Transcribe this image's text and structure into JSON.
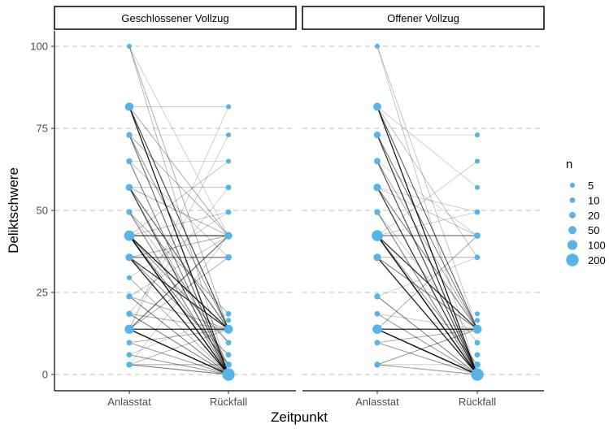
{
  "chart_data": {
    "type": "scatter",
    "subtype": "slopegraph-faceted",
    "ylabel": "Deliktschwere",
    "xlabel": "Zeitpunkt",
    "x_categories": [
      "Anlasstat",
      "Rückfall"
    ],
    "ylim": [
      0,
      100
    ],
    "yticks": [
      0,
      25,
      50,
      75,
      100
    ],
    "grid": "horizontal dashed",
    "legend": {
      "title": "n",
      "position": "right",
      "sizes": [
        5,
        10,
        20,
        50,
        100,
        200
      ],
      "labels": [
        "5",
        "10",
        "20",
        "50",
        "100",
        "200"
      ]
    },
    "colors": {
      "point": "#56B4E9",
      "line": "#000000",
      "strip_border": "#000000",
      "grid": "#cccccc"
    },
    "facets": [
      {
        "title": "Geschlossener Vollzug",
        "points_anlasstat": [
          {
            "y": 100,
            "n": 5
          },
          {
            "y": 81.6,
            "n": 60
          },
          {
            "y": 73,
            "n": 15
          },
          {
            "y": 65,
            "n": 15
          },
          {
            "y": 57,
            "n": 30
          },
          {
            "y": 49.5,
            "n": 15
          },
          {
            "y": 42.3,
            "n": 120
          },
          {
            "y": 35.7,
            "n": 40
          },
          {
            "y": 29.5,
            "n": 5
          },
          {
            "y": 23.8,
            "n": 15
          },
          {
            "y": 18.5,
            "n": 15
          },
          {
            "y": 13.8,
            "n": 80
          },
          {
            "y": 9.7,
            "n": 10
          },
          {
            "y": 6,
            "n": 10
          },
          {
            "y": 3,
            "n": 15
          }
        ],
        "points_rueckfall": [
          {
            "y": 81.6,
            "n": 5
          },
          {
            "y": 73,
            "n": 5
          },
          {
            "y": 65,
            "n": 5
          },
          {
            "y": 57,
            "n": 10
          },
          {
            "y": 49.5,
            "n": 10
          },
          {
            "y": 42.3,
            "n": 40
          },
          {
            "y": 35.7,
            "n": 20
          },
          {
            "y": 18.5,
            "n": 10
          },
          {
            "y": 16.5,
            "n": 5
          },
          {
            "y": 13.8,
            "n": 70
          },
          {
            "y": 9.7,
            "n": 10
          },
          {
            "y": 6,
            "n": 10
          },
          {
            "y": 3,
            "n": 20
          },
          {
            "y": 0,
            "n": 200
          }
        ],
        "links": [
          {
            "from": 81.6,
            "to": 0,
            "w": 0.9
          },
          {
            "from": 81.6,
            "to": 13.8,
            "w": 0.7
          },
          {
            "from": 81.6,
            "to": 81.6,
            "w": 0.2
          },
          {
            "from": 100,
            "to": 13.8,
            "w": 0.3
          },
          {
            "from": 100,
            "to": 0,
            "w": 0.25
          },
          {
            "from": 73,
            "to": 0,
            "w": 0.6
          },
          {
            "from": 73,
            "to": 42.3,
            "w": 0.3
          },
          {
            "from": 73,
            "to": 13.8,
            "w": 0.4
          },
          {
            "from": 65,
            "to": 0,
            "w": 0.5
          },
          {
            "from": 65,
            "to": 35.7,
            "w": 0.2
          },
          {
            "from": 57,
            "to": 0,
            "w": 0.7
          },
          {
            "from": 57,
            "to": 13.8,
            "w": 0.6
          },
          {
            "from": 57,
            "to": 57,
            "w": 0.2
          },
          {
            "from": 57,
            "to": 42.3,
            "w": 0.3
          },
          {
            "from": 49.5,
            "to": 0,
            "w": 0.5
          },
          {
            "from": 49.5,
            "to": 18.5,
            "w": 0.3
          },
          {
            "from": 42.3,
            "to": 42.3,
            "w": 0.8
          },
          {
            "from": 42.3,
            "to": 0,
            "w": 1.0
          },
          {
            "from": 42.3,
            "to": 13.8,
            "w": 0.9
          },
          {
            "from": 42.3,
            "to": 3,
            "w": 0.5
          },
          {
            "from": 42.3,
            "to": 49.5,
            "w": 0.2
          },
          {
            "from": 42.3,
            "to": 65,
            "w": 0.2
          },
          {
            "from": 35.7,
            "to": 35.7,
            "w": 0.6
          },
          {
            "from": 35.7,
            "to": 0,
            "w": 0.9
          },
          {
            "from": 35.7,
            "to": 13.8,
            "w": 0.8
          },
          {
            "from": 35.7,
            "to": 6,
            "w": 0.4
          },
          {
            "from": 29.5,
            "to": 0,
            "w": 0.3
          },
          {
            "from": 23.8,
            "to": 0,
            "w": 0.5
          },
          {
            "from": 23.8,
            "to": 42.3,
            "w": 0.2
          },
          {
            "from": 18.5,
            "to": 0,
            "w": 0.5
          },
          {
            "from": 18.5,
            "to": 13.8,
            "w": 0.3
          },
          {
            "from": 13.8,
            "to": 13.8,
            "w": 0.9
          },
          {
            "from": 13.8,
            "to": 0,
            "w": 1.0
          },
          {
            "from": 13.8,
            "to": 42.3,
            "w": 0.6
          },
          {
            "from": 13.8,
            "to": 35.7,
            "w": 0.3
          },
          {
            "from": 13.8,
            "to": 73,
            "w": 0.15
          },
          {
            "from": 13.8,
            "to": 81.6,
            "w": 0.15
          },
          {
            "from": 9.7,
            "to": 0,
            "w": 0.4
          },
          {
            "from": 9.7,
            "to": 13.8,
            "w": 0.3
          },
          {
            "from": 6,
            "to": 0,
            "w": 0.4
          },
          {
            "from": 3,
            "to": 0,
            "w": 0.5
          },
          {
            "from": 3,
            "to": 3,
            "w": 0.3
          },
          {
            "from": 3,
            "to": 13.8,
            "w": 0.3
          },
          {
            "from": 3,
            "to": 42.3,
            "w": 0.15
          },
          {
            "from": 65,
            "to": 65,
            "w": 0.1
          },
          {
            "from": 73,
            "to": 73,
            "w": 0.1
          },
          {
            "from": 29.5,
            "to": 49.5,
            "w": 0.15
          },
          {
            "from": 18.5,
            "to": 57,
            "w": 0.15
          },
          {
            "from": 49.5,
            "to": 9.7,
            "w": 0.2
          },
          {
            "from": 57,
            "to": 3,
            "w": 0.3
          },
          {
            "from": 81.6,
            "to": 42.3,
            "w": 0.3
          },
          {
            "from": 23.8,
            "to": 13.8,
            "w": 0.3
          },
          {
            "from": 35.7,
            "to": 42.3,
            "w": 0.3
          },
          {
            "from": 6,
            "to": 18.5,
            "w": 0.15
          },
          {
            "from": 100,
            "to": 42.3,
            "w": 0.15
          },
          {
            "from": 42.3,
            "to": 9.7,
            "w": 0.4
          }
        ]
      },
      {
        "title": "Offener Vollzug",
        "points_anlasstat": [
          {
            "y": 100,
            "n": 5
          },
          {
            "y": 81.6,
            "n": 50
          },
          {
            "y": 73,
            "n": 25
          },
          {
            "y": 65,
            "n": 20
          },
          {
            "y": 57,
            "n": 40
          },
          {
            "y": 49.5,
            "n": 15
          },
          {
            "y": 42.3,
            "n": 140
          },
          {
            "y": 35.7,
            "n": 40
          },
          {
            "y": 23.8,
            "n": 15
          },
          {
            "y": 18.5,
            "n": 10
          },
          {
            "y": 13.8,
            "n": 90
          },
          {
            "y": 9.7,
            "n": 10
          },
          {
            "y": 3,
            "n": 15
          }
        ],
        "points_rueckfall": [
          {
            "y": 73,
            "n": 5
          },
          {
            "y": 65,
            "n": 5
          },
          {
            "y": 57,
            "n": 5
          },
          {
            "y": 49.5,
            "n": 10
          },
          {
            "y": 42.3,
            "n": 20
          },
          {
            "y": 35.7,
            "n": 10
          },
          {
            "y": 18.5,
            "n": 5
          },
          {
            "y": 16.5,
            "n": 5
          },
          {
            "y": 13.8,
            "n": 70
          },
          {
            "y": 9.7,
            "n": 10
          },
          {
            "y": 6,
            "n": 10
          },
          {
            "y": 3,
            "n": 20
          },
          {
            "y": 0,
            "n": 200
          }
        ],
        "links": [
          {
            "from": 81.6,
            "to": 0,
            "w": 0.9
          },
          {
            "from": 81.6,
            "to": 13.8,
            "w": 0.6
          },
          {
            "from": 100,
            "to": 13.8,
            "w": 0.2
          },
          {
            "from": 100,
            "to": 0,
            "w": 0.2
          },
          {
            "from": 73,
            "to": 0,
            "w": 0.8
          },
          {
            "from": 73,
            "to": 13.8,
            "w": 0.5
          },
          {
            "from": 65,
            "to": 0,
            "w": 0.7
          },
          {
            "from": 65,
            "to": 13.8,
            "w": 0.3
          },
          {
            "from": 57,
            "to": 0,
            "w": 0.8
          },
          {
            "from": 57,
            "to": 13.8,
            "w": 0.5
          },
          {
            "from": 57,
            "to": 42.3,
            "w": 0.2
          },
          {
            "from": 49.5,
            "to": 0,
            "w": 0.5
          },
          {
            "from": 42.3,
            "to": 42.3,
            "w": 0.6
          },
          {
            "from": 42.3,
            "to": 0,
            "w": 1.0
          },
          {
            "from": 42.3,
            "to": 13.8,
            "w": 0.8
          },
          {
            "from": 42.3,
            "to": 3,
            "w": 0.4
          },
          {
            "from": 35.7,
            "to": 0,
            "w": 0.9
          },
          {
            "from": 35.7,
            "to": 13.8,
            "w": 0.5
          },
          {
            "from": 35.7,
            "to": 35.7,
            "w": 0.3
          },
          {
            "from": 23.8,
            "to": 0,
            "w": 0.5
          },
          {
            "from": 18.5,
            "to": 0,
            "w": 0.4
          },
          {
            "from": 13.8,
            "to": 13.8,
            "w": 0.9
          },
          {
            "from": 13.8,
            "to": 0,
            "w": 1.0
          },
          {
            "from": 13.8,
            "to": 42.3,
            "w": 0.3
          },
          {
            "from": 9.7,
            "to": 0,
            "w": 0.4
          },
          {
            "from": 3,
            "to": 0,
            "w": 0.4
          },
          {
            "from": 3,
            "to": 13.8,
            "w": 0.4
          },
          {
            "from": 3,
            "to": 3,
            "w": 0.2
          },
          {
            "from": 81.6,
            "to": 57,
            "w": 0.15
          },
          {
            "from": 73,
            "to": 73,
            "w": 0.1
          },
          {
            "from": 42.3,
            "to": 49.5,
            "w": 0.15
          },
          {
            "from": 42.3,
            "to": 65,
            "w": 0.15
          },
          {
            "from": 57,
            "to": 49.5,
            "w": 0.15
          },
          {
            "from": 23.8,
            "to": 35.7,
            "w": 0.15
          },
          {
            "from": 9.7,
            "to": 13.8,
            "w": 0.3
          },
          {
            "from": 18.5,
            "to": 13.8,
            "w": 0.2
          },
          {
            "from": 49.5,
            "to": 9.7,
            "w": 0.2
          },
          {
            "from": 65,
            "to": 42.3,
            "w": 0.15
          },
          {
            "from": 81.6,
            "to": 35.7,
            "w": 0.2
          }
        ]
      }
    ]
  }
}
